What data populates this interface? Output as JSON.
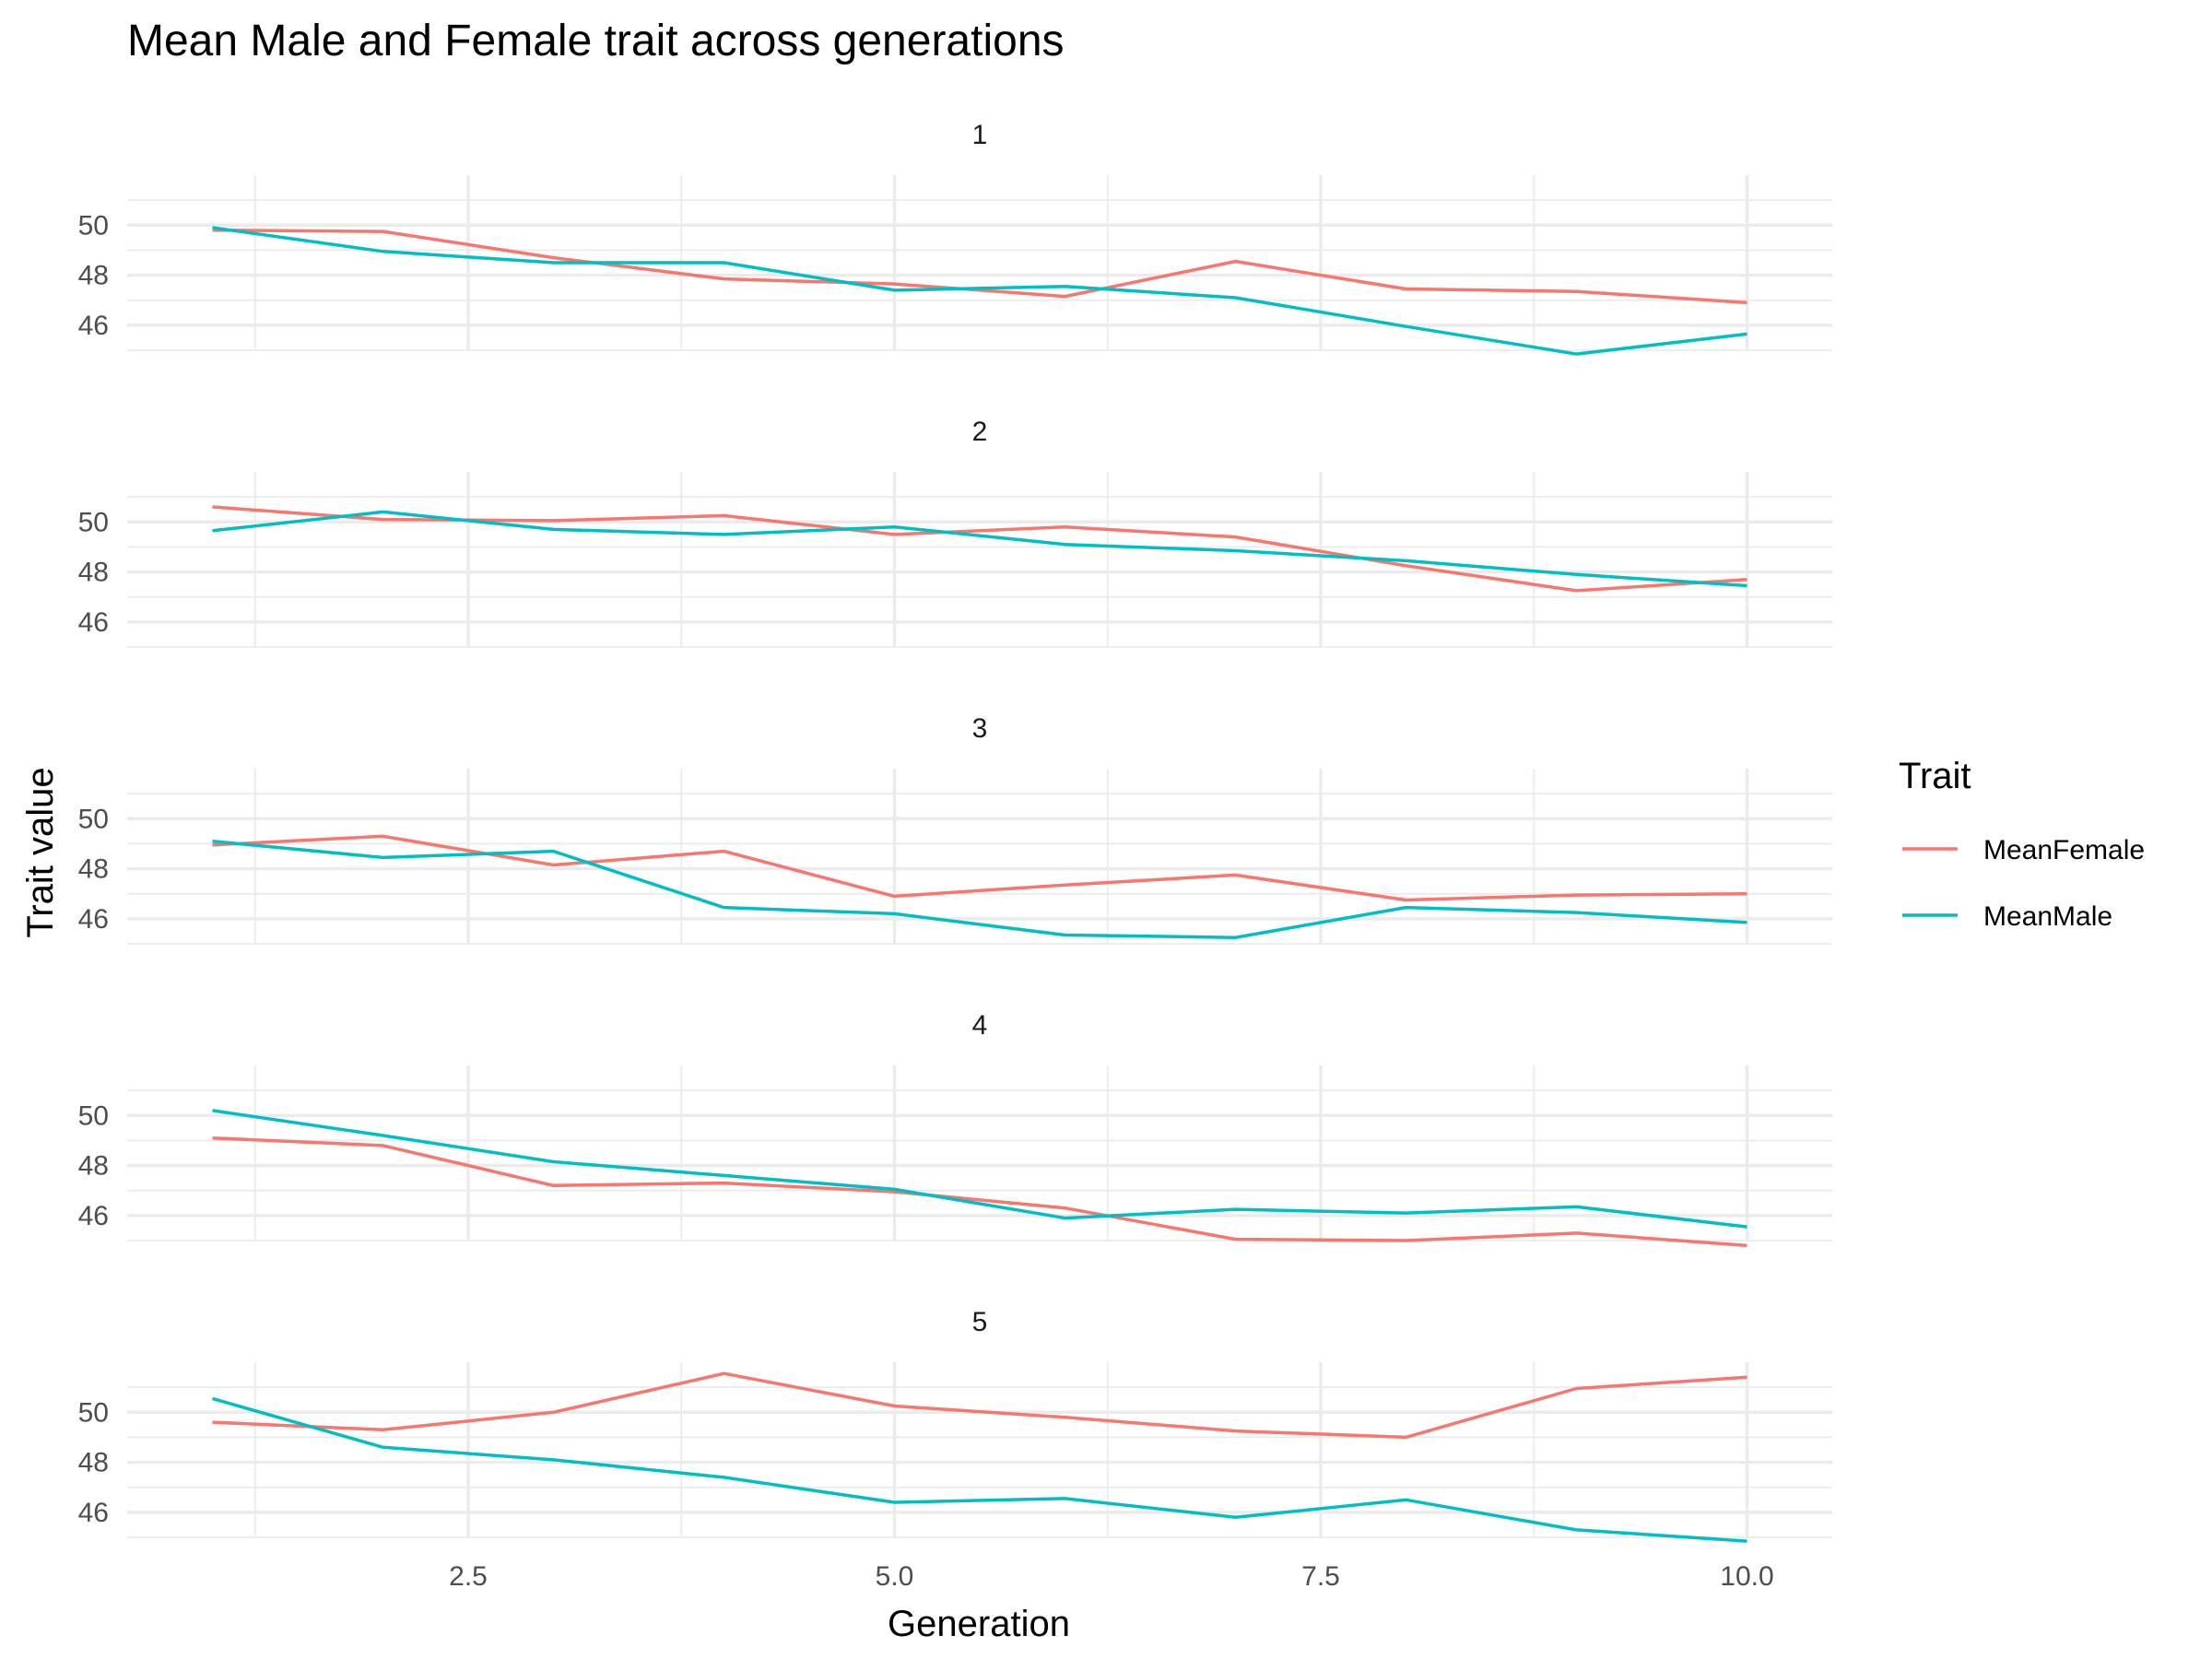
{
  "chart_data": {
    "type": "line",
    "title": "Mean Male and Female trait across generations",
    "xlabel": "Generation",
    "ylabel": "Trait value",
    "x": [
      1,
      2,
      3,
      4,
      5,
      6,
      7,
      8,
      9,
      10
    ],
    "xlim": [
      0.5,
      10.5
    ],
    "ylim": [
      45,
      52
    ],
    "x_ticks": [
      2.5,
      5.0,
      7.5,
      10.0
    ],
    "x_tick_labels": [
      "2.5",
      "5.0",
      "7.5",
      "10.0"
    ],
    "y_ticks": [
      46,
      48,
      50
    ],
    "y_tick_labels": [
      "46",
      "48",
      "50"
    ],
    "grid": true,
    "legend": {
      "title": "Trait",
      "placement": "right",
      "entries": [
        {
          "name": "MeanFemale",
          "color": "#f8766d"
        },
        {
          "name": "MeanMale",
          "color": "#00bfc4"
        }
      ]
    },
    "panels": [
      {
        "label": "1",
        "series": [
          {
            "name": "MeanFemale",
            "values": [
              49.8,
              49.75,
              48.7,
              47.85,
              47.65,
              47.15,
              48.55,
              47.45,
              47.35,
              46.9
            ]
          },
          {
            "name": "MeanMale",
            "values": [
              49.9,
              48.95,
              48.5,
              48.5,
              47.4,
              47.55,
              47.1,
              45.95,
              44.85,
              45.65
            ]
          }
        ]
      },
      {
        "label": "2",
        "series": [
          {
            "name": "MeanFemale",
            "values": [
              50.6,
              50.1,
              50.05,
              50.25,
              49.5,
              49.8,
              49.4,
              48.25,
              47.25,
              47.7
            ]
          },
          {
            "name": "MeanMale",
            "values": [
              49.65,
              50.4,
              49.7,
              49.5,
              49.8,
              49.1,
              48.85,
              48.45,
              47.9,
              47.45
            ]
          }
        ]
      },
      {
        "label": "3",
        "series": [
          {
            "name": "MeanFemale",
            "values": [
              48.95,
              49.3,
              48.15,
              48.7,
              46.9,
              47.35,
              47.75,
              46.75,
              46.95,
              47.0
            ]
          },
          {
            "name": "MeanMale",
            "values": [
              49.1,
              48.45,
              48.7,
              46.45,
              46.2,
              45.35,
              45.25,
              46.45,
              46.25,
              45.85
            ]
          }
        ]
      },
      {
        "label": "4",
        "series": [
          {
            "name": "MeanFemale",
            "values": [
              49.1,
              48.8,
              47.2,
              47.3,
              46.95,
              46.3,
              45.05,
              45.0,
              45.3,
              44.8
            ]
          },
          {
            "name": "MeanMale",
            "values": [
              50.2,
              49.2,
              48.15,
              47.6,
              47.05,
              45.9,
              46.25,
              46.1,
              46.35,
              45.55
            ]
          }
        ]
      },
      {
        "label": "5",
        "series": [
          {
            "name": "MeanFemale",
            "values": [
              49.6,
              49.3,
              50.0,
              51.55,
              50.25,
              49.8,
              49.25,
              49.0,
              50.95,
              51.4
            ]
          },
          {
            "name": "MeanMale",
            "values": [
              50.55,
              48.6,
              48.1,
              47.4,
              46.4,
              46.55,
              45.8,
              46.5,
              45.3,
              44.85
            ]
          }
        ]
      }
    ]
  }
}
